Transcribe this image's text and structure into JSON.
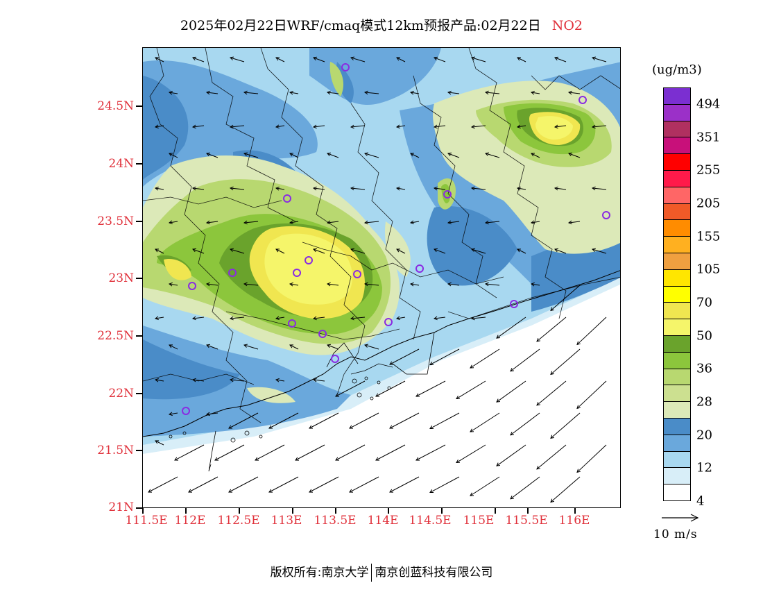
{
  "title": {
    "main": "2025年02月22日WRF/cmaq模式12km预报产品:02月22日",
    "species": "NO2"
  },
  "colorbar": {
    "unit": "(ug/m3)",
    "colors": [
      "#7b2fd1",
      "#9b30c8",
      "#b03060",
      "#c8107a",
      "#ff0000",
      "#ff1a4a",
      "#ff6666",
      "#f05a28",
      "#ff8c00",
      "#ffb020",
      "#f0a040",
      "#ffe600",
      "#ffff00",
      "#f0e650",
      "#f5f56a",
      "#6aa32c",
      "#8cc63c",
      "#b8d870",
      "#cce090",
      "#dce9b8",
      "#4a8cc8",
      "#6aa8dc",
      "#a8d8f0",
      "#d8eef8",
      "#ffffff"
    ],
    "labels": [
      "494",
      "351",
      "255",
      "205",
      "155",
      "105",
      "70",
      "50",
      "36",
      "28",
      "20",
      "12",
      "4"
    ]
  },
  "axes": {
    "lat_labels": [
      "24.5N",
      "24N",
      "23.5N",
      "23N",
      "22.5N",
      "22N",
      "21.5N",
      "21N"
    ],
    "lon_labels": [
      "111.5E",
      "112E",
      "112.5E",
      "113E",
      "113.5E",
      "114E",
      "114.5E",
      "115E",
      "115.5E",
      "116E"
    ]
  },
  "wind_reference": "10 m/s",
  "footer": {
    "left": "版权所有:南京大学",
    "right": "南京创蓝科技有限公司"
  }
}
